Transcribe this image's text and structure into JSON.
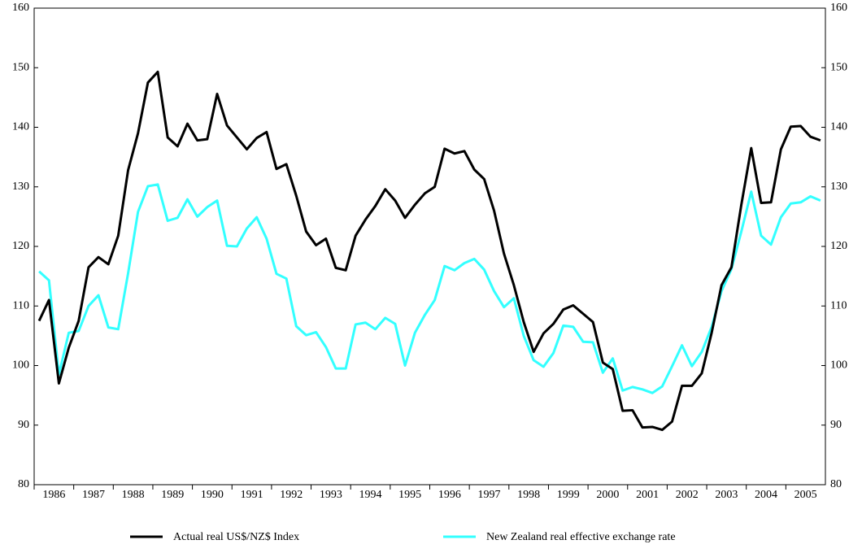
{
  "chart_data": {
    "type": "line",
    "categories": [
      null,
      "1986",
      null,
      null,
      null,
      "1987",
      null,
      null,
      null,
      "1988",
      null,
      null,
      null,
      "1989",
      null,
      null,
      null,
      "1990",
      null,
      null,
      null,
      "1991",
      null,
      null,
      null,
      "1992",
      null,
      null,
      null,
      "1993",
      null,
      null,
      null,
      "1994",
      null,
      null,
      null,
      "1995",
      null,
      null,
      null,
      "1996",
      null,
      null,
      null,
      "1997",
      null,
      null,
      null,
      "1998",
      null,
      null,
      null,
      "1999",
      null,
      null,
      null,
      "2000",
      null,
      null,
      null,
      "2001",
      null,
      null,
      null,
      "2002",
      null,
      null,
      null,
      "2003",
      null,
      null,
      null,
      "2004",
      null,
      null,
      null,
      "2005",
      null,
      null
    ],
    "series": [
      {
        "name": "Actual real US$/NZ$ Index",
        "color": "#000000",
        "values": [
          107.5,
          111,
          97,
          103,
          107.5,
          116.5,
          118.2,
          117,
          121.8,
          132.8,
          139,
          147.5,
          149.3,
          138.3,
          136.8,
          140.6,
          137.8,
          138,
          145.6,
          140.3,
          138.3,
          136.3,
          138.2,
          139.2,
          133,
          133.8,
          128.5,
          122.5,
          120.2,
          121.3,
          116.4,
          116,
          121.8,
          124.5,
          126.8,
          129.6,
          127.7,
          124.8,
          127,
          128.9,
          130,
          136.4,
          135.6,
          136,
          132.9,
          131.3,
          126,
          118.8,
          113.5,
          107.3,
          102.3,
          105.4,
          107,
          109.4,
          110.1,
          108.7,
          107.3,
          100.5,
          99.4,
          92.4,
          92.5,
          89.6,
          89.7,
          89.2,
          90.6,
          96.6,
          96.6,
          98.7,
          105.5,
          113.5,
          116.5,
          127,
          136.5,
          127.3,
          127.4,
          136.3,
          140.1,
          140.2,
          138.4,
          137.8
        ]
      },
      {
        "name": "New Zealand real effective exchange rate",
        "color": "#33ffff",
        "values": [
          115.8,
          114.3,
          98.5,
          105.5,
          105.8,
          110,
          111.8,
          106.4,
          106.1,
          115.5,
          125.8,
          130.1,
          130.4,
          124.3,
          124.8,
          127.9,
          125,
          126.6,
          127.7,
          120.1,
          120,
          123,
          124.9,
          121.3,
          115.4,
          114.6,
          106.6,
          105.1,
          105.6,
          103.1,
          99.5,
          99.5,
          106.9,
          107.2,
          106.1,
          108,
          107,
          100,
          105.5,
          108.5,
          111,
          116.7,
          116,
          117.2,
          117.9,
          116.1,
          112.5,
          109.8,
          111.3,
          105,
          100.9,
          99.8,
          102.1,
          106.7,
          106.5,
          104,
          103.9,
          98.8,
          101.2,
          95.8,
          96.4,
          96,
          95.4,
          96.5,
          99.9,
          103.4,
          99.9,
          102.3,
          106.5,
          112.5,
          116.2,
          122.5,
          129.2,
          121.8,
          120.3,
          124.9,
          127.2,
          127.4,
          128.4,
          127.7
        ]
      }
    ],
    "ylim": [
      80,
      160
    ],
    "yticks": [
      80,
      90,
      100,
      110,
      120,
      130,
      140,
      150,
      160
    ],
    "y2lim": [
      80,
      160
    ],
    "y2ticks": [
      80,
      90,
      100,
      110,
      120,
      130,
      140,
      150,
      160
    ],
    "grid": false
  }
}
